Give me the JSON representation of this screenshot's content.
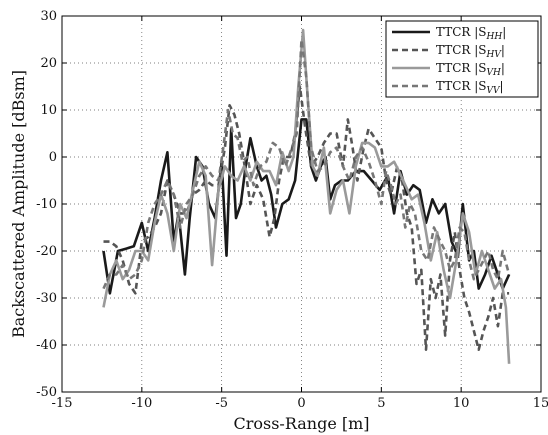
{
  "chart_data": {
    "type": "line",
    "title": "",
    "xlabel": "Cross-Range [m]",
    "ylabel": "Backscattered Amplitude [dBsm]",
    "xlim": [
      -15,
      15
    ],
    "ylim": [
      -50,
      30
    ],
    "xticks": [
      -15,
      -10,
      -5,
      0,
      5,
      10,
      15
    ],
    "yticks": [
      -50,
      -40,
      -30,
      -20,
      -10,
      0,
      10,
      20,
      30
    ],
    "grid": true,
    "legend_position": "top-right",
    "series": [
      {
        "name": "TTCR |S_HH|",
        "label_main": "TTCR |S",
        "label_sub": "HH",
        "label_end": "|",
        "color": "#1a1a1a",
        "dash": "solid",
        "points": [
          [
            -12.4,
            -20
          ],
          [
            -12,
            -29
          ],
          [
            -11.5,
            -20
          ],
          [
            -11,
            -19.5
          ],
          [
            -10.5,
            -19
          ],
          [
            -10,
            -14
          ],
          [
            -9.6,
            -20
          ],
          [
            -9.2,
            -13
          ],
          [
            -8.8,
            -5
          ],
          [
            -8.4,
            1
          ],
          [
            -8,
            -18
          ],
          [
            -7.7,
            -12
          ],
          [
            -7.3,
            -25
          ],
          [
            -7,
            -13
          ],
          [
            -6.6,
            0
          ],
          [
            -6.2,
            -2
          ],
          [
            -5.8,
            -10
          ],
          [
            -5.4,
            -13
          ],
          [
            -5,
            -1
          ],
          [
            -4.7,
            -21
          ],
          [
            -4.4,
            6
          ],
          [
            -4.1,
            -13
          ],
          [
            -3.8,
            -10
          ],
          [
            -3.5,
            -2
          ],
          [
            -3.2,
            4
          ],
          [
            -2.8,
            -2
          ],
          [
            -2.5,
            -5
          ],
          [
            -2.2,
            -4
          ],
          [
            -1.9,
            -8
          ],
          [
            -1.6,
            -15
          ],
          [
            -1.2,
            -10
          ],
          [
            -0.8,
            -9
          ],
          [
            -0.4,
            -5
          ],
          [
            0,
            8
          ],
          [
            0.3,
            8
          ],
          [
            0.6,
            -2
          ],
          [
            0.9,
            -5
          ],
          [
            1.2,
            -2
          ],
          [
            1.5,
            0
          ],
          [
            1.8,
            -9
          ],
          [
            2.1,
            -6
          ],
          [
            2.5,
            -5
          ],
          [
            2.9,
            -5
          ],
          [
            3.4,
            -3
          ],
          [
            3.9,
            -3
          ],
          [
            4.4,
            -5
          ],
          [
            4.9,
            -7
          ],
          [
            5.4,
            -4
          ],
          [
            5.8,
            -12
          ],
          [
            6.2,
            -3
          ],
          [
            6.6,
            -8
          ],
          [
            7,
            -6
          ],
          [
            7.4,
            -7
          ],
          [
            7.8,
            -14
          ],
          [
            8.2,
            -9
          ],
          [
            8.6,
            -12
          ],
          [
            9,
            -10
          ],
          [
            9.4,
            -18
          ],
          [
            9.8,
            -21
          ],
          [
            10.1,
            -10
          ],
          [
            10.5,
            -22
          ],
          [
            10.8,
            -20
          ],
          [
            11.1,
            -28
          ],
          [
            11.5,
            -25
          ],
          [
            11.9,
            -21
          ],
          [
            12.2,
            -24
          ],
          [
            12.6,
            -28
          ],
          [
            13,
            -25
          ]
        ]
      },
      {
        "name": "TTCR |S_HV|",
        "label_main": "TTCR |S",
        "label_sub": "HV",
        "label_end": "|",
        "color": "#555555",
        "dash": "dashed",
        "points": [
          [
            -12.4,
            -18
          ],
          [
            -12,
            -18
          ],
          [
            -11.6,
            -19
          ],
          [
            -11.2,
            -22
          ],
          [
            -10.8,
            -27
          ],
          [
            -10.4,
            -29
          ],
          [
            -10,
            -18
          ],
          [
            -9.6,
            -17
          ],
          [
            -9.2,
            -15
          ],
          [
            -8.8,
            -12
          ],
          [
            -8.4,
            -5
          ],
          [
            -8,
            -8
          ],
          [
            -7.6,
            -12
          ],
          [
            -7.2,
            -12
          ],
          [
            -6.8,
            -8
          ],
          [
            -6.4,
            -7
          ],
          [
            -6,
            -5
          ],
          [
            -5.6,
            -6
          ],
          [
            -5.2,
            -6
          ],
          [
            -4.8,
            2
          ],
          [
            -4.5,
            11
          ],
          [
            -4.2,
            9
          ],
          [
            -3.9,
            5
          ],
          [
            -3.6,
            -1
          ],
          [
            -3.2,
            -10
          ],
          [
            -2.8,
            -6
          ],
          [
            -2.4,
            -9
          ],
          [
            -2,
            -17
          ],
          [
            -1.7,
            -13
          ],
          [
            -1.4,
            -5
          ],
          [
            -1.1,
            0
          ],
          [
            -0.7,
            0
          ],
          [
            -0.4,
            5
          ],
          [
            -0.1,
            15
          ],
          [
            0.2,
            7
          ],
          [
            0.6,
            -2
          ],
          [
            1,
            0
          ],
          [
            1.4,
            3
          ],
          [
            1.8,
            5
          ],
          [
            2.2,
            5
          ],
          [
            2.6,
            -2
          ],
          [
            2.9,
            8
          ],
          [
            3.2,
            2
          ],
          [
            3.5,
            -5
          ],
          [
            3.9,
            2
          ],
          [
            4.2,
            6
          ],
          [
            4.6,
            4
          ],
          [
            5,
            2
          ],
          [
            5.3,
            -5
          ],
          [
            5.6,
            -8
          ],
          [
            6,
            -2
          ],
          [
            6.3,
            -5
          ],
          [
            6.6,
            -12
          ],
          [
            6.9,
            -15
          ],
          [
            7.2,
            -27
          ],
          [
            7.5,
            -24
          ],
          [
            7.8,
            -41
          ],
          [
            8.1,
            -26
          ],
          [
            8.4,
            -30
          ],
          [
            8.7,
            -25
          ],
          [
            9,
            -38
          ],
          [
            9.3,
            -22
          ],
          [
            9.6,
            -16
          ],
          [
            9.9,
            -24
          ],
          [
            10.2,
            -30
          ],
          [
            10.5,
            -33
          ],
          [
            10.8,
            -37
          ],
          [
            11.1,
            -41
          ],
          [
            11.4,
            -37
          ],
          [
            11.7,
            -34
          ],
          [
            12,
            -30
          ],
          [
            12.3,
            -36
          ],
          [
            12.6,
            -29
          ],
          [
            13,
            -29
          ]
        ]
      },
      {
        "name": "TTCR |S_VH|",
        "label_main": "TTCR |S",
        "label_sub": "VH",
        "label_end": "|",
        "color": "#9a9a9a",
        "dash": "solid",
        "points": [
          [
            -12.4,
            -32
          ],
          [
            -12,
            -25
          ],
          [
            -11.6,
            -22
          ],
          [
            -11.2,
            -26
          ],
          [
            -10.8,
            -24
          ],
          [
            -10.4,
            -20
          ],
          [
            -10,
            -20
          ],
          [
            -9.6,
            -22
          ],
          [
            -9.2,
            -14
          ],
          [
            -8.8,
            -8
          ],
          [
            -8.4,
            -12
          ],
          [
            -8,
            -20
          ],
          [
            -7.6,
            -10
          ],
          [
            -7.2,
            -13
          ],
          [
            -6.8,
            -7
          ],
          [
            -6.4,
            -1
          ],
          [
            -6,
            -4
          ],
          [
            -5.6,
            -23
          ],
          [
            -5.2,
            -7
          ],
          [
            -4.8,
            -2
          ],
          [
            -4.4,
            -4
          ],
          [
            -4,
            -5
          ],
          [
            -3.6,
            -2
          ],
          [
            -3.2,
            -5
          ],
          [
            -2.8,
            -1
          ],
          [
            -2.4,
            -3
          ],
          [
            -2,
            -3
          ],
          [
            -1.6,
            -6
          ],
          [
            -1.2,
            1
          ],
          [
            -0.8,
            -3
          ],
          [
            -0.5,
            0
          ],
          [
            -0.2,
            15
          ],
          [
            0.1,
            27
          ],
          [
            0.4,
            12
          ],
          [
            0.7,
            -2
          ],
          [
            1,
            -4
          ],
          [
            1.4,
            2
          ],
          [
            1.8,
            -12
          ],
          [
            2.2,
            -7
          ],
          [
            2.6,
            -5
          ],
          [
            3,
            -12
          ],
          [
            3.4,
            -2
          ],
          [
            3.8,
            3
          ],
          [
            4.2,
            3
          ],
          [
            4.6,
            2
          ],
          [
            5,
            -2
          ],
          [
            5.4,
            -2
          ],
          [
            5.8,
            -1
          ],
          [
            6.1,
            -3
          ],
          [
            6.5,
            -6
          ],
          [
            6.9,
            -9
          ],
          [
            7.3,
            -8
          ],
          [
            7.7,
            -14
          ],
          [
            8.1,
            -22
          ],
          [
            8.5,
            -16
          ],
          [
            8.9,
            -24
          ],
          [
            9.3,
            -30
          ],
          [
            9.7,
            -22
          ],
          [
            10.1,
            -12
          ],
          [
            10.5,
            -16
          ],
          [
            10.9,
            -25
          ],
          [
            11.3,
            -20
          ],
          [
            11.7,
            -24
          ],
          [
            12.1,
            -28
          ],
          [
            12.5,
            -26
          ],
          [
            12.8,
            -32
          ],
          [
            13,
            -44
          ]
        ]
      },
      {
        "name": "TTCR |S_VV|",
        "label_main": "TTCR |S",
        "label_sub": "VV",
        "label_end": "|",
        "color": "#777777",
        "dash": "dashed",
        "points": [
          [
            -12.4,
            -28
          ],
          [
            -12,
            -25
          ],
          [
            -11.6,
            -25
          ],
          [
            -11.2,
            -23
          ],
          [
            -10.8,
            -26
          ],
          [
            -10.4,
            -25
          ],
          [
            -10,
            -22
          ],
          [
            -9.6,
            -14
          ],
          [
            -9.2,
            -10
          ],
          [
            -8.8,
            -8
          ],
          [
            -8.4,
            -5
          ],
          [
            -8,
            -8
          ],
          [
            -7.6,
            -15
          ],
          [
            -7.2,
            -10
          ],
          [
            -6.8,
            -8
          ],
          [
            -6.4,
            -4
          ],
          [
            -6,
            -2
          ],
          [
            -5.6,
            -4
          ],
          [
            -5.2,
            -5
          ],
          [
            -4.9,
            2
          ],
          [
            -4.6,
            10
          ],
          [
            -4.3,
            5
          ],
          [
            -4,
            4
          ],
          [
            -3.7,
            -1
          ],
          [
            -3.4,
            0
          ],
          [
            -3,
            -6
          ],
          [
            -2.6,
            -2
          ],
          [
            -2.2,
            -1
          ],
          [
            -1.8,
            3
          ],
          [
            -1.4,
            2
          ],
          [
            -1,
            -2
          ],
          [
            -0.6,
            2
          ],
          [
            -0.3,
            5
          ],
          [
            0,
            25
          ],
          [
            0.3,
            17
          ],
          [
            0.6,
            2
          ],
          [
            1,
            -3
          ],
          [
            1.4,
            -2
          ],
          [
            1.8,
            1
          ],
          [
            2.2,
            2
          ],
          [
            2.6,
            -2
          ],
          [
            3,
            -5
          ],
          [
            3.4,
            0
          ],
          [
            3.8,
            2
          ],
          [
            4.2,
            -1
          ],
          [
            4.6,
            -5
          ],
          [
            5,
            -10
          ],
          [
            5.3,
            -3
          ],
          [
            5.6,
            -6
          ],
          [
            5.9,
            -10
          ],
          [
            6.2,
            -8
          ],
          [
            6.5,
            -15
          ],
          [
            6.8,
            -10
          ],
          [
            7.1,
            -12
          ],
          [
            7.5,
            -20
          ],
          [
            7.9,
            -22
          ],
          [
            8.3,
            -15
          ],
          [
            8.7,
            -18
          ],
          [
            9,
            -20
          ],
          [
            9.3,
            -24
          ],
          [
            9.6,
            -22
          ],
          [
            9.9,
            -15
          ],
          [
            10.2,
            -16
          ],
          [
            10.5,
            -22
          ],
          [
            10.8,
            -26
          ],
          [
            11.1,
            -24
          ],
          [
            11.4,
            -22
          ],
          [
            11.7,
            -20
          ],
          [
            12,
            -24
          ],
          [
            12.3,
            -26
          ],
          [
            12.6,
            -20
          ],
          [
            13,
            -25
          ]
        ]
      }
    ]
  }
}
